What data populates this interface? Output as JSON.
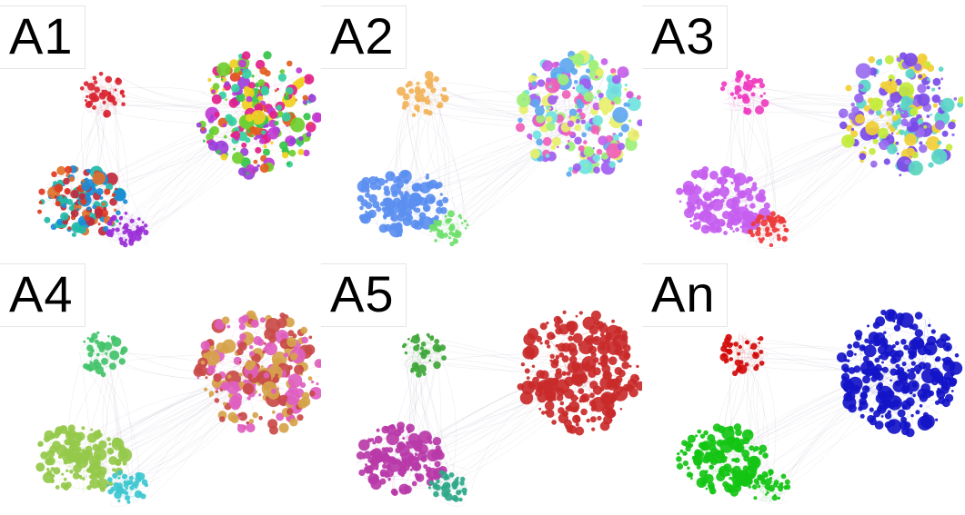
{
  "figure": {
    "panels": [
      {
        "label": "A1",
        "scheme": "mixed",
        "clusters": [
          {
            "name": "top-left",
            "color": "#d92632"
          },
          {
            "name": "large-right",
            "palette": [
              "#e21f8a",
              "#34c34a",
              "#f0d020",
              "#9b3fd9",
              "#e25d1e",
              "#33cfa0",
              "#c23bd4",
              "#6fcf2e"
            ]
          },
          {
            "name": "bottom-left",
            "palette": [
              "#e03a1e",
              "#1a8bd6",
              "#20b8a8",
              "#e2702a",
              "#c0293b"
            ]
          },
          {
            "name": "bottom-small",
            "color": "#9a2ed8"
          }
        ]
      },
      {
        "label": "A2",
        "scheme": "mixed",
        "clusters": [
          {
            "name": "top-left",
            "color": "#f2b35a"
          },
          {
            "name": "large-right",
            "palette": [
              "#9f5ef0",
              "#c45ee8",
              "#70e3e0",
              "#9ff07a",
              "#f060b8",
              "#5fa8f0",
              "#e7f06a"
            ]
          },
          {
            "name": "bottom-left",
            "color": "#5b8ff0"
          },
          {
            "name": "bottom-small",
            "color": "#6fe06b"
          }
        ]
      },
      {
        "label": "A3",
        "scheme": "mixed",
        "clusters": [
          {
            "name": "top-left",
            "color": "#f03cc0"
          },
          {
            "name": "large-right",
            "palette": [
              "#c3ec3a",
              "#7a4ae8",
              "#f2cf36",
              "#5ad6c8",
              "#9a6cf0"
            ]
          },
          {
            "name": "bottom-left",
            "color": "#c65ef0"
          },
          {
            "name": "bottom-small",
            "color": "#ee3a3a"
          }
        ]
      },
      {
        "label": "A4",
        "scheme": "four-community",
        "clusters": [
          {
            "name": "top-left",
            "color": "#43c36a"
          },
          {
            "name": "large-right",
            "palette": [
              "#d6a34a",
              "#e060c0",
              "#c94a48"
            ]
          },
          {
            "name": "bottom-left",
            "color": "#95c94a"
          },
          {
            "name": "bottom-small",
            "color": "#3cc7d0"
          }
        ]
      },
      {
        "label": "A5",
        "scheme": "four-community",
        "clusters": [
          {
            "name": "top-left",
            "color": "#3fa63a"
          },
          {
            "name": "large-right",
            "color": "#c92a2a"
          },
          {
            "name": "bottom-left",
            "color": "#b83aa8"
          },
          {
            "name": "bottom-small",
            "color": "#2fa88a"
          }
        ]
      },
      {
        "label": "An",
        "scheme": "three-community",
        "clusters": [
          {
            "name": "top-left",
            "color": "#d20a0a"
          },
          {
            "name": "large-right",
            "color": "#1414c8"
          },
          {
            "name": "bottom-left",
            "color": "#14c414"
          },
          {
            "name": "bottom-small",
            "color": "#14c414"
          }
        ]
      }
    ]
  }
}
